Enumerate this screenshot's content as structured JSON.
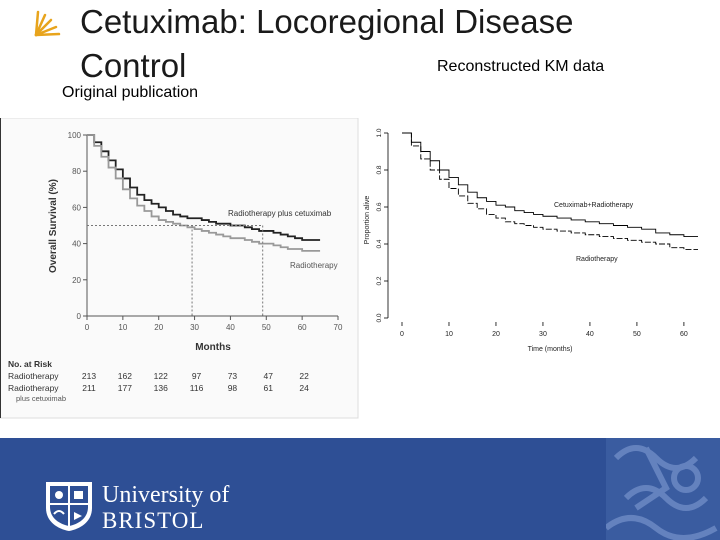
{
  "slide": {
    "title_line1": "Cetuximab: Locoregional Disease",
    "title_line2": "Control",
    "label_right": "Reconstructed KM data",
    "label_left": "Original publication"
  },
  "footer": {
    "university_line1": "University of",
    "university_line2": "BRISTOL",
    "brand_color": "#2e4f95"
  },
  "chart_data": [
    {
      "type": "line",
      "title": "",
      "xlabel": "Months",
      "ylabel": "Overall Survival (%)",
      "xlim": [
        0,
        70
      ],
      "ylim": [
        0,
        100
      ],
      "x_ticks": [
        0,
        10,
        20,
        30,
        40,
        50,
        60,
        70
      ],
      "y_ticks": [
        0,
        20,
        40,
        60,
        80,
        100
      ],
      "series": [
        {
          "name": "Radiotherapy plus cetuximab",
          "color": "#222222",
          "x": [
            0,
            2,
            4,
            6,
            8,
            10,
            12,
            14,
            16,
            18,
            20,
            22,
            24,
            26,
            28,
            30,
            32,
            34,
            36,
            38,
            40,
            42,
            44,
            46,
            48,
            50,
            52,
            54,
            56,
            58,
            60,
            62,
            64,
            65
          ],
          "y": [
            100,
            96,
            91,
            86,
            81,
            76,
            71,
            67,
            64,
            62,
            60,
            58,
            56,
            55,
            54,
            54,
            53,
            52,
            51,
            51,
            50,
            50,
            49,
            48,
            47,
            47,
            46,
            45,
            44,
            43,
            42,
            42,
            42,
            42
          ]
        },
        {
          "name": "Radiotherapy",
          "color": "#999999",
          "x": [
            0,
            2,
            4,
            6,
            8,
            10,
            12,
            14,
            16,
            18,
            20,
            22,
            24,
            26,
            28,
            30,
            32,
            34,
            36,
            38,
            40,
            42,
            44,
            46,
            48,
            50,
            52,
            54,
            56,
            58,
            60,
            62,
            64,
            65
          ],
          "y": [
            100,
            94,
            88,
            82,
            76,
            70,
            65,
            61,
            58,
            55,
            53,
            52,
            51,
            50,
            49,
            48,
            47,
            46,
            45,
            44,
            43,
            43,
            42,
            41,
            40,
            40,
            39,
            38,
            37,
            37,
            36,
            36,
            36,
            36
          ]
        }
      ],
      "reference_lines": {
        "y": 50,
        "x_cetuximab": 49,
        "x_radiotherapy": 29.3
      },
      "risk_table": {
        "header": "No. at Risk",
        "rows": [
          {
            "label": "Radiotherapy",
            "values": [
              "213",
              "162",
              "122",
              "97",
              "73",
              "47",
              "22"
            ]
          },
          {
            "label": "Radiotherapy",
            "label_extra": "plus cetuximab",
            "values": [
              "211",
              "177",
              "136",
              "116",
              "98",
              "61",
              "24"
            ]
          }
        ]
      }
    },
    {
      "type": "line",
      "title": "",
      "xlabel": "Time (months)",
      "ylabel": "Proportion alive",
      "xlim": [
        0,
        63
      ],
      "ylim": [
        0,
        1
      ],
      "x_ticks": [
        0,
        10,
        20,
        30,
        40,
        50,
        60
      ],
      "y_ticks": [
        "0.0",
        "0.2",
        "0.4",
        "0.6",
        "0.8",
        "1.0"
      ],
      "series": [
        {
          "name": "Cetuximab+Radiotherapy",
          "color": "#000000",
          "x": [
            0,
            2,
            4,
            6,
            8,
            10,
            12,
            14,
            16,
            18,
            20,
            22,
            24,
            26,
            28,
            30,
            33,
            36,
            39,
            42,
            45,
            48,
            51,
            54,
            57,
            60,
            63
          ],
          "y": [
            1.0,
            0.95,
            0.9,
            0.85,
            0.8,
            0.76,
            0.72,
            0.68,
            0.65,
            0.63,
            0.61,
            0.6,
            0.58,
            0.57,
            0.56,
            0.55,
            0.54,
            0.53,
            0.52,
            0.51,
            0.5,
            0.49,
            0.48,
            0.46,
            0.45,
            0.44,
            0.44
          ]
        },
        {
          "name": "Radiotherapy",
          "color": "#000000",
          "x": [
            0,
            2,
            4,
            6,
            8,
            10,
            12,
            14,
            16,
            18,
            20,
            22,
            24,
            26,
            28,
            30,
            33,
            36,
            39,
            42,
            45,
            48,
            51,
            54,
            57,
            60,
            63
          ],
          "y": [
            1.0,
            0.93,
            0.86,
            0.8,
            0.75,
            0.7,
            0.66,
            0.62,
            0.59,
            0.56,
            0.54,
            0.52,
            0.51,
            0.5,
            0.49,
            0.48,
            0.47,
            0.46,
            0.45,
            0.44,
            0.43,
            0.42,
            0.41,
            0.4,
            0.38,
            0.37,
            0.37
          ]
        }
      ]
    }
  ]
}
